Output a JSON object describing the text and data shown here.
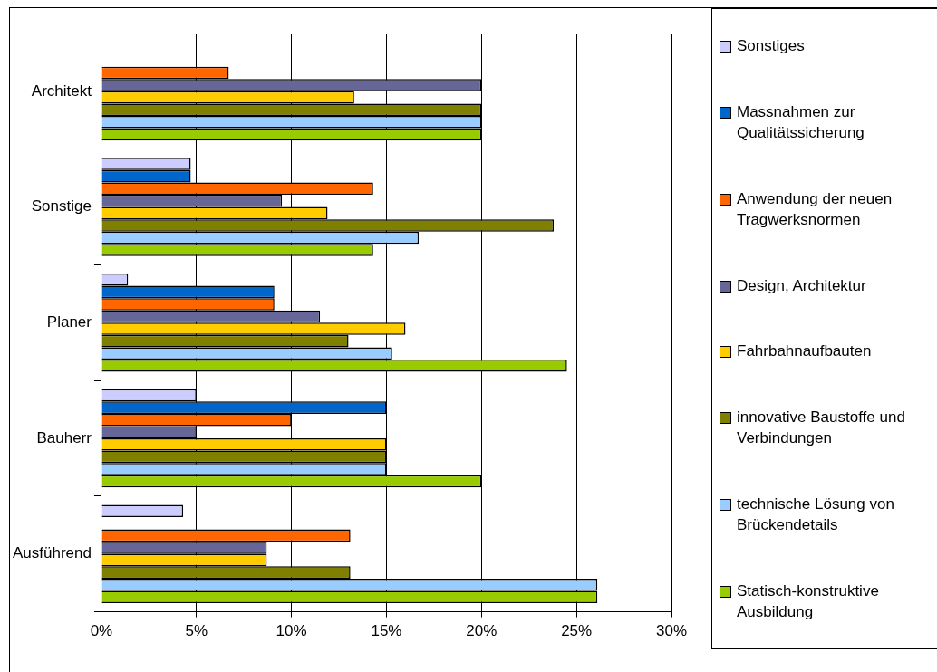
{
  "chart_data": {
    "type": "bar",
    "orientation": "horizontal",
    "categories": [
      "Architekt",
      "Sonstige",
      "Planer",
      "Bauherr",
      "Ausführend"
    ],
    "series": [
      {
        "name": "Sonstiges",
        "color": "#ccccff",
        "values": [
          null,
          4.7,
          1.4,
          5,
          4.3
        ]
      },
      {
        "name": "Massnahmen zur Qualitätssicherung",
        "color": "#0066cc",
        "values": [
          null,
          4.7,
          9.1,
          15,
          null
        ]
      },
      {
        "name": "Anwendung der neuen Tragwerksnormen",
        "color": "#ff6600",
        "values": [
          6.7,
          14.3,
          9.1,
          10,
          13.1
        ]
      },
      {
        "name": "Design, Architektur",
        "color": "#666699",
        "values": [
          20,
          9.5,
          11.5,
          5,
          8.7
        ]
      },
      {
        "name": "Fahrbahnaufbauten",
        "color": "#ffcc00",
        "values": [
          13.3,
          11.9,
          16,
          15,
          8.7
        ]
      },
      {
        "name": "innovative Baustoffe und Verbindungen",
        "color": "#808000",
        "values": [
          20,
          23.8,
          13,
          15,
          13.1
        ]
      },
      {
        "name": "technische Lösung von Brückendetails",
        "color": "#99ccff",
        "values": [
          20,
          16.7,
          15.3,
          15,
          26.1
        ]
      },
      {
        "name": "Statisch-konstruktive Ausbildung",
        "color": "#99cc00",
        "values": [
          20,
          14.3,
          24.5,
          20,
          26.1
        ]
      }
    ],
    "xlim": [
      0,
      30
    ],
    "xticks": [
      {
        "value": 0,
        "label": "0%"
      },
      {
        "value": 5,
        "label": "5%"
      },
      {
        "value": 10,
        "label": "10%"
      },
      {
        "value": 15,
        "label": "15%"
      },
      {
        "value": 20,
        "label": "20%"
      },
      {
        "value": 25,
        "label": "25%"
      },
      {
        "value": 30,
        "label": "30%"
      }
    ],
    "grid": "x",
    "legend": "right"
  }
}
